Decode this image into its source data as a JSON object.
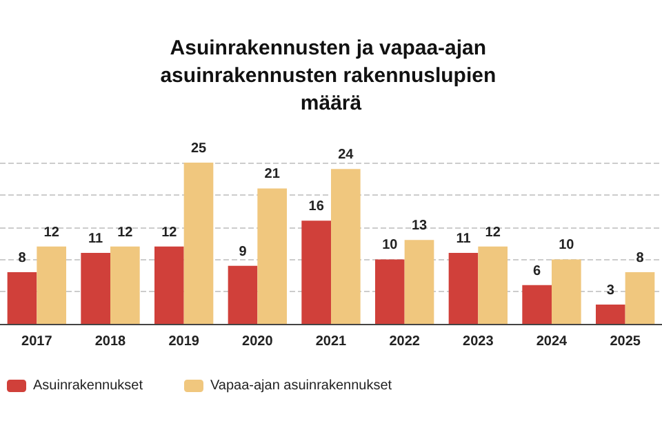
{
  "chart_data": {
    "type": "bar",
    "title": "Asuinrakennusten ja vapaa-ajan asuinrakennusten rakennuslupien määrä",
    "categories": [
      "2017",
      "2018",
      "2019",
      "2020",
      "2021",
      "2022",
      "2023",
      "2024",
      "2025"
    ],
    "series": [
      {
        "name": "Asuinrakennukset",
        "color": "#d0403a",
        "values": [
          8,
          11,
          12,
          9,
          16,
          10,
          11,
          6,
          3
        ]
      },
      {
        "name": "Vapaa-ajan asuinrakennukset",
        "color": "#f0c77e",
        "values": [
          12,
          12,
          25,
          21,
          24,
          13,
          12,
          10,
          8
        ]
      }
    ],
    "ylim": [
      0,
      25
    ],
    "yticks": [
      {
        "value": 0,
        "label": null
      },
      {
        "value": 5,
        "label": null
      },
      {
        "value": 10,
        "label": null
      },
      {
        "value": 15,
        "label": null
      },
      {
        "value": 20,
        "label": null
      },
      {
        "value": 25,
        "label": null
      }
    ],
    "tick_labels": "x",
    "grid": "y",
    "legend": "bottom left",
    "data_labels": true
  }
}
